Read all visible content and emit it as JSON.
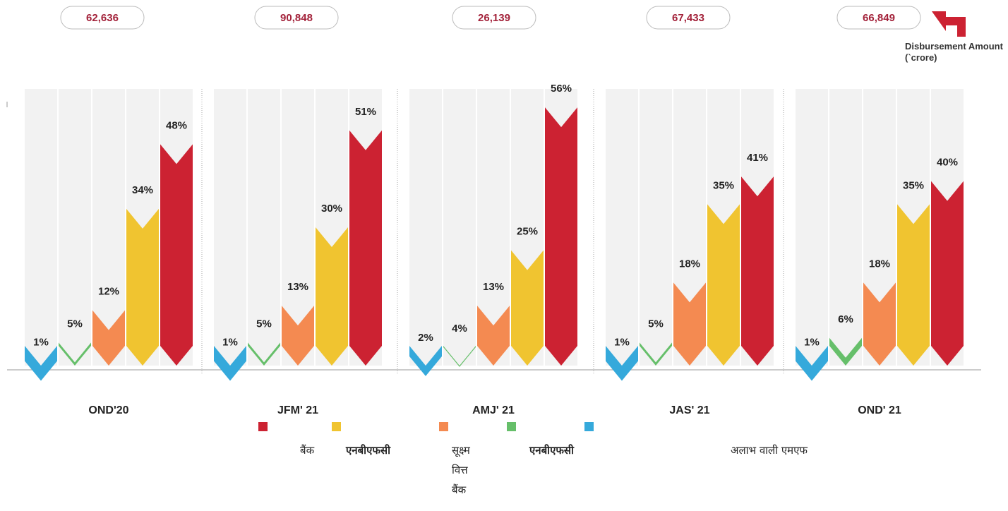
{
  "chart_data": {
    "type": "bar",
    "categories": [
      "OND'20",
      "JFM' 21",
      "AMJ' 21",
      "JAS' 21",
      "OND' 21"
    ],
    "ylim": [
      0,
      60
    ],
    "series": [
      {
        "name": "अलाभ वाली एमएफ",
        "color": "#35a9db",
        "values": [
          1,
          1,
          2,
          1,
          1
        ],
        "value_labels": [
          "1%",
          "1%",
          "2%",
          "1%",
          "1%"
        ]
      },
      {
        "name": "एनबीएफसी",
        "color": "#66bf6a",
        "values": [
          5,
          5,
          4,
          5,
          6
        ],
        "value_labels": [
          "5%",
          "5%",
          "4%",
          "5%",
          "6%"
        ]
      },
      {
        "name": "सूक्ष्म वित्त बैंक",
        "color": "#f48a51",
        "values": [
          12,
          13,
          13,
          18,
          18
        ],
        "value_labels": [
          "12%",
          "13%",
          "13%",
          "18%",
          "18%"
        ]
      },
      {
        "name": "एनबीएफसी",
        "color": "#f0c430",
        "values": [
          34,
          30,
          25,
          35,
          35
        ],
        "value_labels": [
          "34%",
          "30%",
          "25%",
          "35%",
          "35%"
        ]
      },
      {
        "name": "बैंक",
        "color": "#cc2232",
        "values": [
          48,
          51,
          56,
          41,
          40
        ],
        "value_labels": [
          "48%",
          "51%",
          "56%",
          "41%",
          "40%"
        ]
      }
    ],
    "disbursement": {
      "label": "Disbursement Amount (`crore)",
      "values": [
        62636,
        90848,
        26139,
        67433,
        66849
      ],
      "value_labels": [
        "62,636",
        "90,848",
        "26,139",
        "67,433",
        "66,849"
      ]
    }
  }
}
